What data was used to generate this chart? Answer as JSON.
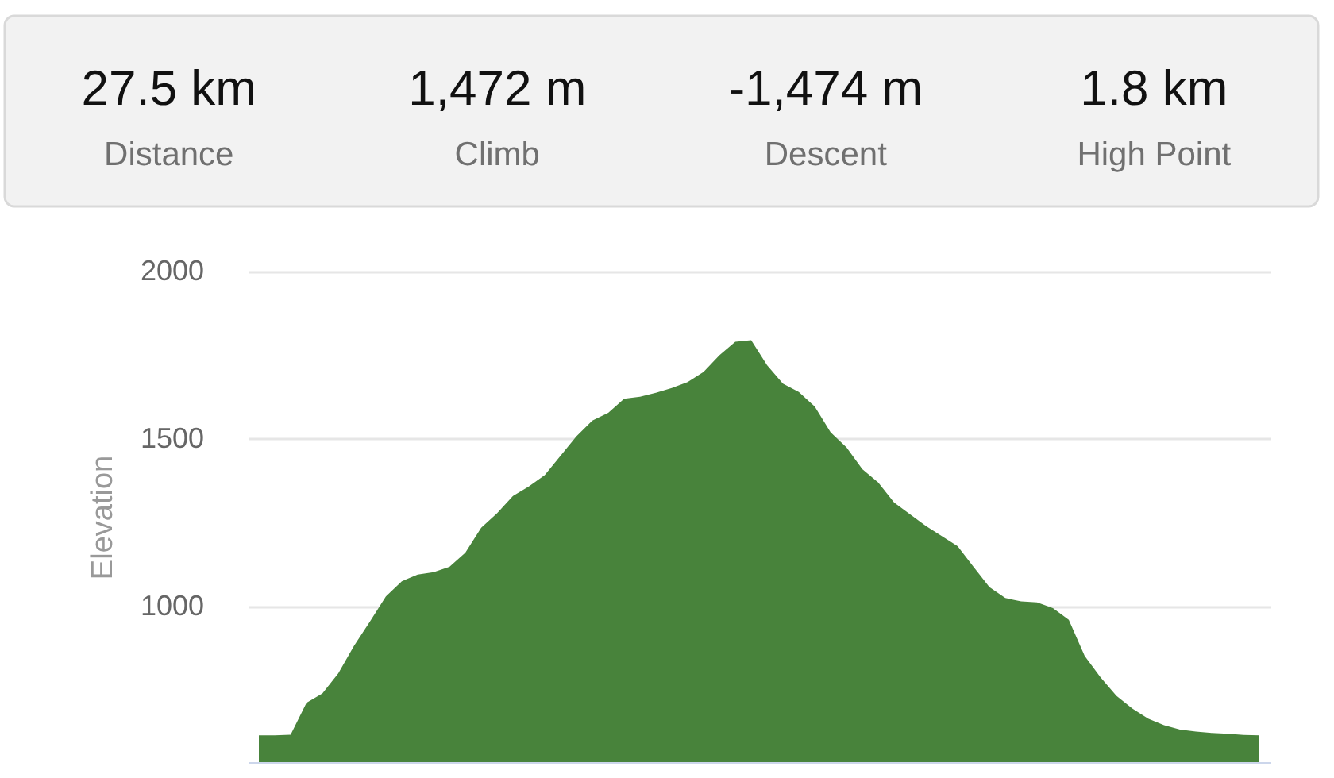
{
  "chart_data": {
    "type": "area",
    "ylabel": "Elevation",
    "annotations": [
      "27.5 km",
      "Distance",
      "1,472 m",
      "Climb",
      "-1,474 m",
      "Descent",
      "1.8 km",
      "High Point"
    ],
    "categories": [
      null,
      null,
      null,
      null,
      null,
      null,
      null,
      null,
      null,
      null,
      null,
      null,
      null,
      null,
      null,
      null,
      null,
      null,
      null,
      null,
      null,
      null,
      null,
      null,
      null,
      null,
      null,
      null,
      null,
      null,
      null,
      null,
      null,
      null,
      null,
      null,
      null,
      null,
      null,
      null,
      null,
      null,
      null,
      null,
      null,
      null,
      null,
      null,
      null,
      null,
      null,
      null,
      null,
      null,
      null,
      null,
      null,
      null,
      null,
      null,
      null,
      null,
      null,
      null
    ],
    "series": [
      {
        "color": "#48833b",
        "values": [
          615,
          615,
          617,
          712,
          740,
          800,
          883,
          955,
          1030,
          1075,
          1095,
          1102,
          1118,
          1160,
          1235,
          1278,
          1330,
          1358,
          1392,
          1450,
          1508,
          1555,
          1578,
          1620,
          1626,
          1638,
          1652,
          1670,
          1700,
          1750,
          1790,
          1795,
          1720,
          1665,
          1640,
          1597,
          1520,
          1475,
          1410,
          1370,
          1310,
          1275,
          1240,
          1210,
          1180,
          1118,
          1058,
          1025,
          1015,
          1012,
          995,
          960,
          852,
          788,
          733,
          695,
          665,
          645,
          632,
          626,
          622,
          620,
          616,
          615
        ]
      }
    ],
    "ylim": [
      535,
      2000
    ],
    "yticks": [
      1000,
      1500,
      2000
    ],
    "grid": "y",
    "tick_labels": "y"
  }
}
